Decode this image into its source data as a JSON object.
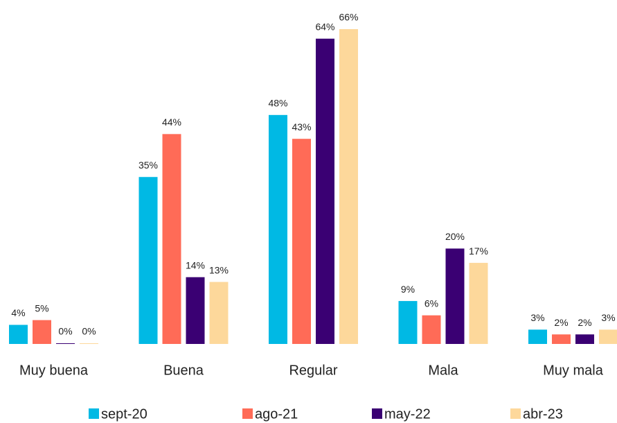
{
  "chart_data": {
    "type": "bar",
    "categories": [
      "Muy buena",
      "Buena",
      "Regular",
      "Mala",
      "Muy mala"
    ],
    "series": [
      {
        "name": "sept-20",
        "color": "#00b9e4",
        "values": [
          4,
          35,
          48,
          9,
          3
        ],
        "value_labels": [
          "4%",
          "35%",
          "48%",
          "9%",
          "3%"
        ]
      },
      {
        "name": "ago-21",
        "color": "#ff6b57",
        "values": [
          5,
          44,
          43,
          6,
          2
        ],
        "value_labels": [
          "5%",
          "44%",
          "43%",
          "6%",
          "2%"
        ]
      },
      {
        "name": "may-22",
        "color": "#3a0073",
        "values": [
          0,
          14,
          64,
          20,
          2
        ],
        "value_labels": [
          "0%",
          "14%",
          "64%",
          "20%",
          "2%"
        ]
      },
      {
        "name": "abr-23",
        "color": "#fdd89b",
        "values": [
          0,
          13,
          66,
          17,
          3
        ],
        "value_labels": [
          "0%",
          "13%",
          "66%",
          "17%",
          "3%"
        ]
      }
    ],
    "legend": "bottom"
  }
}
